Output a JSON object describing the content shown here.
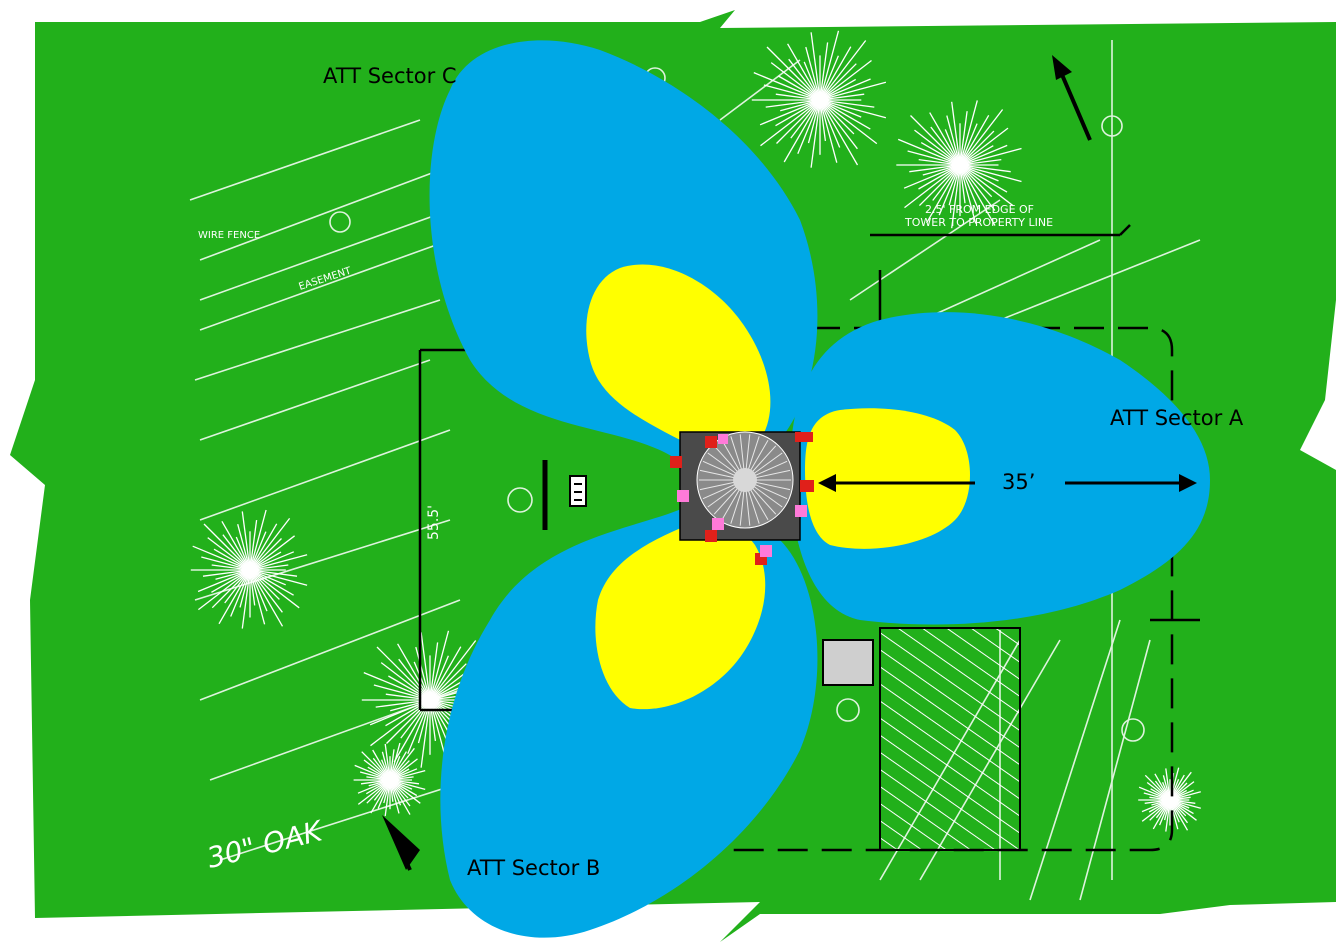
{
  "sectors": {
    "a": {
      "label": "ATT Sector A"
    },
    "b": {
      "label": "ATT Sector B"
    },
    "c": {
      "label": "ATT Sector C"
    }
  },
  "dimension": {
    "label": "35’"
  },
  "site_plan_text": {
    "fence": "WIRE FENCE",
    "edge_note_1": "2.5' FROM EDGE OF",
    "edge_note_2": "TOWER TO PROPERTY LINE",
    "easement": "EASEMENT",
    "dim_vertical": "55.5'",
    "oak": "30\" OAK"
  },
  "colors": {
    "ground": "#22b01b",
    "outer_zone": "#00a8e6",
    "inner_zone": "#ffff00",
    "drawing_lines": "#ffffff",
    "boundary": "#000000",
    "antenna_red": "#e0201a",
    "antenna_pink": "#ff7ad9"
  }
}
